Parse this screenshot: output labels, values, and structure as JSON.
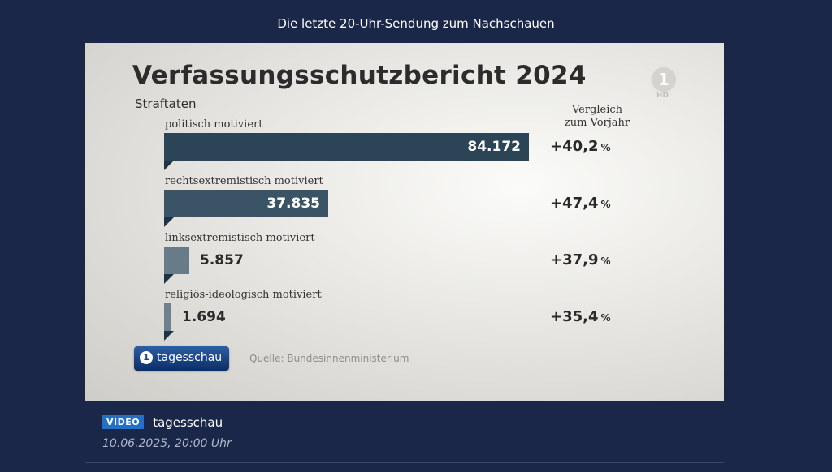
{
  "page": {
    "heading": "Die letzte 20-Uhr-Sendung zum Nachschauen"
  },
  "slide": {
    "logo_text": "1",
    "logo_hd": "HD",
    "badge_text": "tagesschau",
    "source": "Quelle: Bundesinnenministerium"
  },
  "caption": {
    "badge": "VIDEO",
    "source": "tagesschau",
    "date": "10.06.2025, 20:00 Uhr"
  },
  "chart_data": {
    "type": "bar",
    "title": "Verfassungsschutzbericht 2024",
    "subtitle": "Straftaten",
    "compare_header": [
      "Vergleich",
      "zum Vorjahr"
    ],
    "categories": [
      "politisch motiviert",
      "rechtsextremistisch motiviert",
      "linksextremistisch motiviert",
      "religiös-ideologisch motiviert"
    ],
    "values": [
      84172,
      37835,
      5857,
      1694
    ],
    "value_labels": [
      "84.172",
      "37.835",
      "5.857",
      "1.694"
    ],
    "change_labels": [
      "+40,2",
      "+47,4",
      "+37,9",
      "+35,4"
    ],
    "change_unit": "%",
    "bar_colors": [
      "#2b4456",
      "#3a5466",
      "#687b89",
      "#6f808e"
    ],
    "xlim": [
      0,
      84172
    ]
  }
}
